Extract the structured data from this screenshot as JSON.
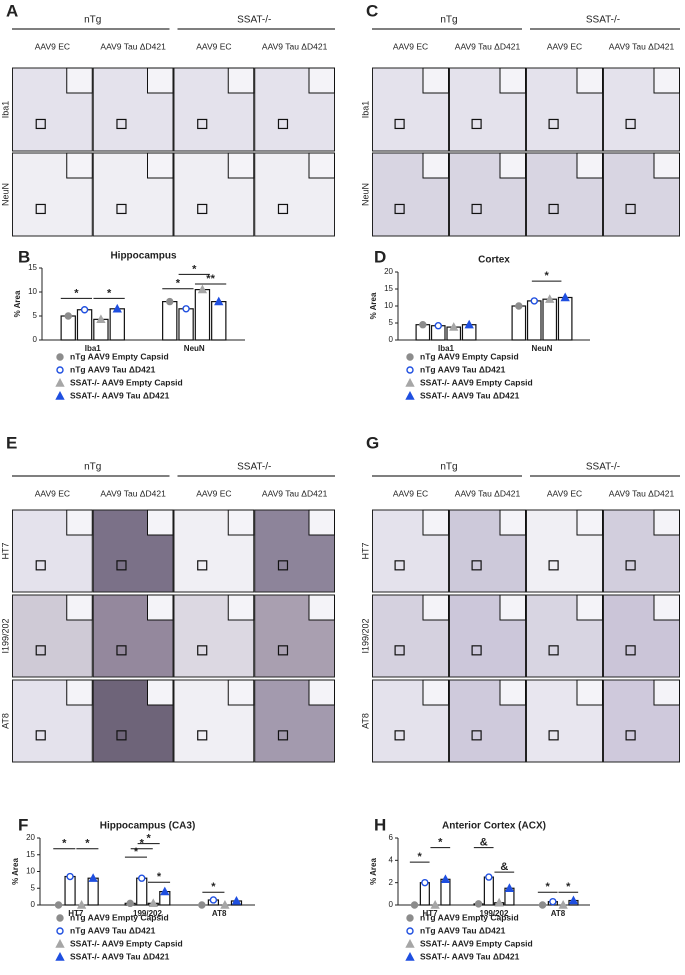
{
  "panels": {
    "A": {
      "label": "A",
      "groups": [
        "nTg",
        "SSAT-/-"
      ],
      "columns": [
        "AAV9 EC",
        "AAV9 Tau ΔD421",
        "AAV9 EC",
        "AAV9 Tau ΔD421"
      ],
      "rows": [
        "Iba1",
        "NeuN"
      ]
    },
    "C": {
      "label": "C",
      "groups": [
        "nTg",
        "SSAT-/-"
      ],
      "columns": [
        "AAV9 EC",
        "AAV9 Tau ΔD421",
        "AAV9 EC",
        "AAV9 Tau ΔD421"
      ],
      "rows": [
        "Iba1",
        "NeuN"
      ]
    },
    "E": {
      "label": "E",
      "groups": [
        "nTg",
        "SSAT-/-"
      ],
      "columns": [
        "AAV9 EC",
        "AAV9 Tau ΔD421",
        "AAV9 EC",
        "AAV9 Tau ΔD421"
      ],
      "rows": [
        "HT7",
        "I199/202",
        "AT8"
      ]
    },
    "G": {
      "label": "G",
      "groups": [
        "nTg",
        "SSAT-/-"
      ],
      "columns": [
        "AAV9 EC",
        "AAV9 Tau ΔD421",
        "AAV9 EC",
        "AAV9 Tau ΔD421"
      ],
      "rows": [
        "HT7",
        "I199/202",
        "AT8"
      ]
    }
  },
  "chart_data": [
    {
      "type": "bar",
      "panel": "B",
      "title": "Hippocampus",
      "y_label": "% Area",
      "categories": [
        "Iba1",
        "NeuN"
      ],
      "series": [
        {
          "name": "nTg AAV9 Empty Capsid",
          "color": "#8c8c8c",
          "values": [
            5,
            8
          ]
        },
        {
          "name": "nTg AAV9 Tau ΔD421",
          "color": "#1f4fe0",
          "values": [
            6.3,
            6.5
          ]
        },
        {
          "name": "SSAT-/- AAV9 Empty Capsid",
          "color": "#a6a6a6",
          "values": [
            4.3,
            10.5
          ]
        },
        {
          "name": "SSAT-/- AAV9 Tau ΔD421",
          "color": "#1f4fe0",
          "values": [
            6.5,
            8
          ]
        }
      ],
      "ylim": [
        0,
        15
      ],
      "yticks": [
        0,
        5,
        10,
        15
      ],
      "annotations": [
        "*",
        "*",
        "*",
        "*",
        "**"
      ]
    },
    {
      "type": "bar",
      "panel": "D",
      "title": "Cortex",
      "y_label": "% Area",
      "categories": [
        "Iba1",
        "NeuN"
      ],
      "series": [
        {
          "name": "nTg AAV9 Empty Capsid",
          "color": "#8c8c8c",
          "values": [
            4.5,
            10
          ]
        },
        {
          "name": "nTg AAV9 Tau ΔD421",
          "color": "#1f4fe0",
          "values": [
            4.2,
            11.5
          ]
        },
        {
          "name": "SSAT-/- AAV9 Empty Capsid",
          "color": "#a6a6a6",
          "values": [
            3.8,
            12
          ]
        },
        {
          "name": "SSAT-/- AAV9 Tau ΔD421",
          "color": "#1f4fe0",
          "values": [
            4.5,
            12.5
          ]
        }
      ],
      "ylim": [
        0,
        20
      ],
      "yticks": [
        0,
        5,
        10,
        15,
        20
      ],
      "annotations": [
        "*"
      ]
    },
    {
      "type": "bar",
      "panel": "F",
      "title": "Hippocampus (CA3)",
      "y_label": "% Area",
      "categories": [
        "HT7",
        "199/202",
        "AT8"
      ],
      "series": [
        {
          "name": "nTg AAV9 Empty Capsid",
          "color": "#8c8c8c",
          "values": [
            0,
            0.5,
            0
          ]
        },
        {
          "name": "nTg AAV9 Tau ΔD421",
          "color": "#1f4fe0",
          "values": [
            8.5,
            8,
            1.5
          ]
        },
        {
          "name": "SSAT-/- AAV9 Empty Capsid",
          "color": "#a6a6a6",
          "values": [
            0,
            0.5,
            0
          ]
        },
        {
          "name": "SSAT-/- AAV9 Tau ΔD421",
          "color": "#1f4fe0",
          "values": [
            8,
            4,
            1.2
          ]
        }
      ],
      "ylim": [
        0,
        20
      ],
      "yticks": [
        0,
        5,
        10,
        15,
        20
      ],
      "annotations": [
        "*",
        "*",
        "*",
        "*",
        "*",
        "*",
        "*"
      ]
    },
    {
      "type": "bar",
      "panel": "H",
      "title": "Anterior Cortex (ACX)",
      "y_label": "% Area",
      "categories": [
        "HT7",
        "199/202",
        "AT8"
      ],
      "series": [
        {
          "name": "nTg AAV9 Empty Capsid",
          "color": "#8c8c8c",
          "values": [
            0,
            0.1,
            0
          ]
        },
        {
          "name": "nTg AAV9 Tau ΔD421",
          "color": "#1f4fe0",
          "values": [
            2,
            2.5,
            0.3
          ]
        },
        {
          "name": "SSAT-/- AAV9 Empty Capsid",
          "color": "#a6a6a6",
          "values": [
            0,
            0.2,
            0
          ]
        },
        {
          "name": "SSAT-/- AAV9 Tau ΔD421",
          "color": "#1f4fe0",
          "values": [
            2.3,
            1.5,
            0.4
          ]
        }
      ],
      "ylim": [
        0,
        6
      ],
      "yticks": [
        0,
        2,
        4,
        6
      ],
      "annotations": [
        "*",
        "*",
        "&",
        "&",
        "*",
        "*"
      ]
    }
  ]
}
